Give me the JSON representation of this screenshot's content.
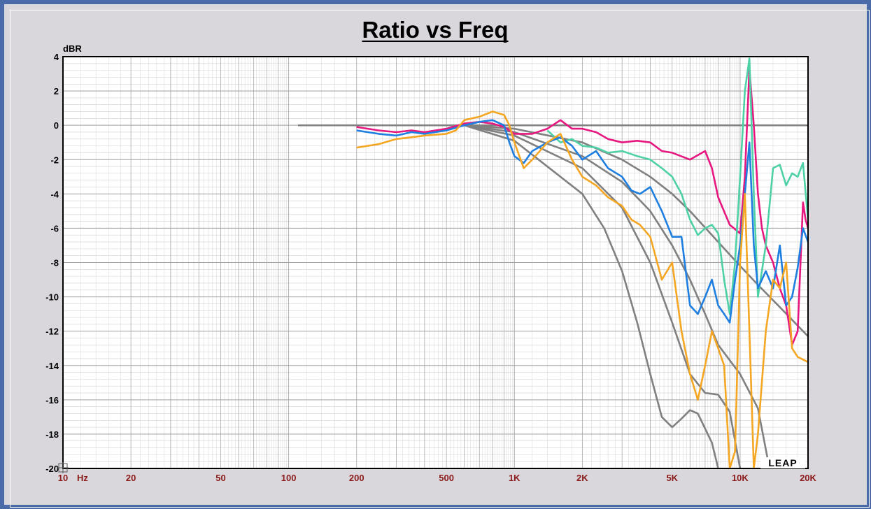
{
  "chart_data": {
    "type": "line",
    "title": "Ratio vs Freq",
    "ylabel": "dBR",
    "xscale": "log",
    "xlim": [
      10,
      20000
    ],
    "ylim": [
      -20,
      4
    ],
    "yticks": [
      4,
      2,
      0,
      -2,
      -4,
      -6,
      -8,
      -10,
      -12,
      -14,
      -16,
      -18,
      -20
    ],
    "xticks": [
      {
        "value": 10,
        "label": "10"
      },
      {
        "value": 20,
        "label": "20"
      },
      {
        "value": 50,
        "label": "50"
      },
      {
        "value": 100,
        "label": "100"
      },
      {
        "value": 200,
        "label": "200"
      },
      {
        "value": 500,
        "label": "500"
      },
      {
        "value": 1000,
        "label": "1K"
      },
      {
        "value": 2000,
        "label": "2K"
      },
      {
        "value": 5000,
        "label": "5K"
      },
      {
        "value": 10000,
        "label": "10K"
      },
      {
        "value": 20000,
        "label": "20K"
      }
    ],
    "xunit": "Hz",
    "grid": true,
    "logo_text": "LEAP",
    "series": [
      {
        "color": "#808080",
        "points": [
          [
            110,
            0
          ],
          [
            20000,
            0
          ]
        ]
      },
      {
        "color": "#808080",
        "points": [
          [
            600,
            0
          ],
          [
            1000,
            -0.2
          ],
          [
            2000,
            -1
          ],
          [
            3000,
            -2
          ],
          [
            4000,
            -3
          ],
          [
            5000,
            -4
          ],
          [
            6000,
            -5
          ],
          [
            8000,
            -6.8
          ],
          [
            10000,
            -8.2
          ],
          [
            12000,
            -9.3
          ],
          [
            15000,
            -10.6
          ],
          [
            20000,
            -12.3
          ]
        ]
      },
      {
        "color": "#808080",
        "points": [
          [
            600,
            0
          ],
          [
            1000,
            -0.4
          ],
          [
            2000,
            -1.8
          ],
          [
            3000,
            -3.3
          ],
          [
            4000,
            -5
          ],
          [
            5000,
            -7
          ],
          [
            6000,
            -9
          ],
          [
            7000,
            -11
          ],
          [
            8000,
            -12.8
          ],
          [
            10000,
            -14.5
          ],
          [
            12000,
            -16.5
          ],
          [
            13500,
            -20
          ]
        ]
      },
      {
        "color": "#808080",
        "points": [
          [
            600,
            0
          ],
          [
            1000,
            -0.6
          ],
          [
            2000,
            -2.5
          ],
          [
            3000,
            -4.8
          ],
          [
            4000,
            -8
          ],
          [
            5000,
            -11.5
          ],
          [
            6000,
            -14.5
          ],
          [
            7000,
            -15.6
          ],
          [
            8000,
            -15.7
          ],
          [
            9000,
            -16.7
          ],
          [
            10000,
            -20
          ]
        ]
      },
      {
        "color": "#808080",
        "points": [
          [
            600,
            0
          ],
          [
            1000,
            -0.9
          ],
          [
            2000,
            -4
          ],
          [
            2500,
            -6
          ],
          [
            3000,
            -8.5
          ],
          [
            3500,
            -11.5
          ],
          [
            4000,
            -14.5
          ],
          [
            4500,
            -17
          ],
          [
            5000,
            -17.6
          ],
          [
            5500,
            -17.1
          ],
          [
            6000,
            -16.6
          ],
          [
            6500,
            -16.8
          ],
          [
            7500,
            -18.5
          ],
          [
            8000,
            -20
          ]
        ]
      },
      {
        "color": "#e6177f",
        "points": [
          [
            200,
            -0.1
          ],
          [
            250,
            -0.3
          ],
          [
            300,
            -0.4
          ],
          [
            350,
            -0.3
          ],
          [
            400,
            -0.4
          ],
          [
            500,
            -0.2
          ],
          [
            600,
            0.1
          ],
          [
            700,
            0.2
          ],
          [
            800,
            0.1
          ],
          [
            900,
            -0.1
          ],
          [
            1000,
            -0.5
          ],
          [
            1200,
            -0.5
          ],
          [
            1400,
            -0.2
          ],
          [
            1600,
            0.3
          ],
          [
            1800,
            -0.2
          ],
          [
            2000,
            -0.2
          ],
          [
            2300,
            -0.4
          ],
          [
            2600,
            -0.8
          ],
          [
            3000,
            -1
          ],
          [
            3500,
            -0.9
          ],
          [
            4000,
            -1
          ],
          [
            4500,
            -1.5
          ],
          [
            5000,
            -1.6
          ],
          [
            6000,
            -2
          ],
          [
            7000,
            -1.5
          ],
          [
            7500,
            -2.5
          ],
          [
            8000,
            -4.2
          ],
          [
            9000,
            -5.8
          ],
          [
            10000,
            -6.3
          ],
          [
            10500,
            -3
          ],
          [
            11000,
            3.3
          ],
          [
            11500,
            0
          ],
          [
            12000,
            -4
          ],
          [
            12500,
            -6
          ],
          [
            13000,
            -7
          ],
          [
            14000,
            -8
          ],
          [
            15000,
            -9.5
          ],
          [
            16000,
            -10.5
          ],
          [
            17000,
            -12.8
          ],
          [
            18000,
            -12
          ],
          [
            19000,
            -4.5
          ],
          [
            19500,
            -5.5
          ],
          [
            20000,
            -6
          ]
        ]
      },
      {
        "color": "#4fd1a8",
        "points": [
          [
            1400,
            -0.3
          ],
          [
            1600,
            -1
          ],
          [
            1800,
            -0.8
          ],
          [
            2000,
            -1.2
          ],
          [
            2300,
            -1.3
          ],
          [
            2600,
            -1.6
          ],
          [
            3000,
            -1.5
          ],
          [
            3500,
            -1.8
          ],
          [
            4000,
            -2
          ],
          [
            4500,
            -2.5
          ],
          [
            5000,
            -3
          ],
          [
            5500,
            -4
          ],
          [
            6000,
            -5.5
          ],
          [
            6500,
            -6.4
          ],
          [
            7000,
            -6
          ],
          [
            7500,
            -5.8
          ],
          [
            8000,
            -6.3
          ],
          [
            8500,
            -9
          ],
          [
            9000,
            -11
          ],
          [
            9500,
            -8
          ],
          [
            10000,
            -3
          ],
          [
            10500,
            2
          ],
          [
            11000,
            3.9
          ],
          [
            11500,
            -4
          ],
          [
            12000,
            -10
          ],
          [
            13000,
            -7
          ],
          [
            14000,
            -2.5
          ],
          [
            15000,
            -2.3
          ],
          [
            16000,
            -3.5
          ],
          [
            17000,
            -2.8
          ],
          [
            18000,
            -3
          ],
          [
            19000,
            -2.2
          ],
          [
            20000,
            -5.5
          ]
        ]
      },
      {
        "color": "#1f7fe0",
        "points": [
          [
            200,
            -0.3
          ],
          [
            250,
            -0.5
          ],
          [
            300,
            -0.6
          ],
          [
            350,
            -0.4
          ],
          [
            400,
            -0.5
          ],
          [
            500,
            -0.3
          ],
          [
            600,
            0
          ],
          [
            700,
            0.2
          ],
          [
            800,
            0.3
          ],
          [
            900,
            0
          ],
          [
            950,
            -1
          ],
          [
            1000,
            -1.8
          ],
          [
            1100,
            -2.2
          ],
          [
            1200,
            -1.5
          ],
          [
            1400,
            -1
          ],
          [
            1600,
            -0.7
          ],
          [
            1800,
            -1.2
          ],
          [
            2000,
            -2
          ],
          [
            2300,
            -1.5
          ],
          [
            2600,
            -2.5
          ],
          [
            3000,
            -3
          ],
          [
            3300,
            -3.8
          ],
          [
            3600,
            -4
          ],
          [
            4000,
            -3.6
          ],
          [
            4500,
            -5
          ],
          [
            5000,
            -6.5
          ],
          [
            5500,
            -6.5
          ],
          [
            6000,
            -10.5
          ],
          [
            6500,
            -11
          ],
          [
            7000,
            -10
          ],
          [
            7500,
            -9
          ],
          [
            8000,
            -10.5
          ],
          [
            8500,
            -11
          ],
          [
            9000,
            -11.5
          ],
          [
            9500,
            -9
          ],
          [
            10000,
            -7
          ],
          [
            10500,
            -4
          ],
          [
            11000,
            -1
          ],
          [
            11500,
            -7
          ],
          [
            12000,
            -9.5
          ],
          [
            13000,
            -8.5
          ],
          [
            14000,
            -9.5
          ],
          [
            15000,
            -7
          ],
          [
            16000,
            -10.5
          ],
          [
            17000,
            -10
          ],
          [
            18000,
            -8.3
          ],
          [
            19000,
            -6
          ],
          [
            20000,
            -6.8
          ]
        ]
      },
      {
        "color": "#f5a623",
        "points": [
          [
            200,
            -1.3
          ],
          [
            250,
            -1.1
          ],
          [
            300,
            -0.8
          ],
          [
            350,
            -0.7
          ],
          [
            400,
            -0.6
          ],
          [
            500,
            -0.5
          ],
          [
            550,
            -0.3
          ],
          [
            600,
            0.3
          ],
          [
            700,
            0.5
          ],
          [
            800,
            0.8
          ],
          [
            900,
            0.6
          ],
          [
            950,
            0
          ],
          [
            1000,
            -1
          ],
          [
            1100,
            -2.5
          ],
          [
            1200,
            -2
          ],
          [
            1400,
            -1
          ],
          [
            1600,
            -0.5
          ],
          [
            1800,
            -2
          ],
          [
            2000,
            -3
          ],
          [
            2300,
            -3.5
          ],
          [
            2600,
            -4.2
          ],
          [
            3000,
            -4.7
          ],
          [
            3300,
            -5.5
          ],
          [
            3600,
            -5.8
          ],
          [
            4000,
            -6.5
          ],
          [
            4500,
            -9
          ],
          [
            5000,
            -8
          ],
          [
            5500,
            -12
          ],
          [
            6000,
            -14.5
          ],
          [
            6500,
            -16
          ],
          [
            7000,
            -14
          ],
          [
            7500,
            -12
          ],
          [
            8000,
            -13
          ],
          [
            8500,
            -14
          ],
          [
            9000,
            -20
          ],
          [
            9500,
            -19
          ],
          [
            10000,
            -8
          ],
          [
            10500,
            -4
          ],
          [
            11000,
            -12
          ],
          [
            11500,
            -20
          ],
          [
            12000,
            -18
          ],
          [
            13000,
            -12
          ],
          [
            14000,
            -9
          ],
          [
            15000,
            -9.5
          ],
          [
            16000,
            -8
          ],
          [
            17000,
            -13
          ],
          [
            18000,
            -13.5
          ],
          [
            20000,
            -13.8
          ]
        ]
      }
    ]
  }
}
